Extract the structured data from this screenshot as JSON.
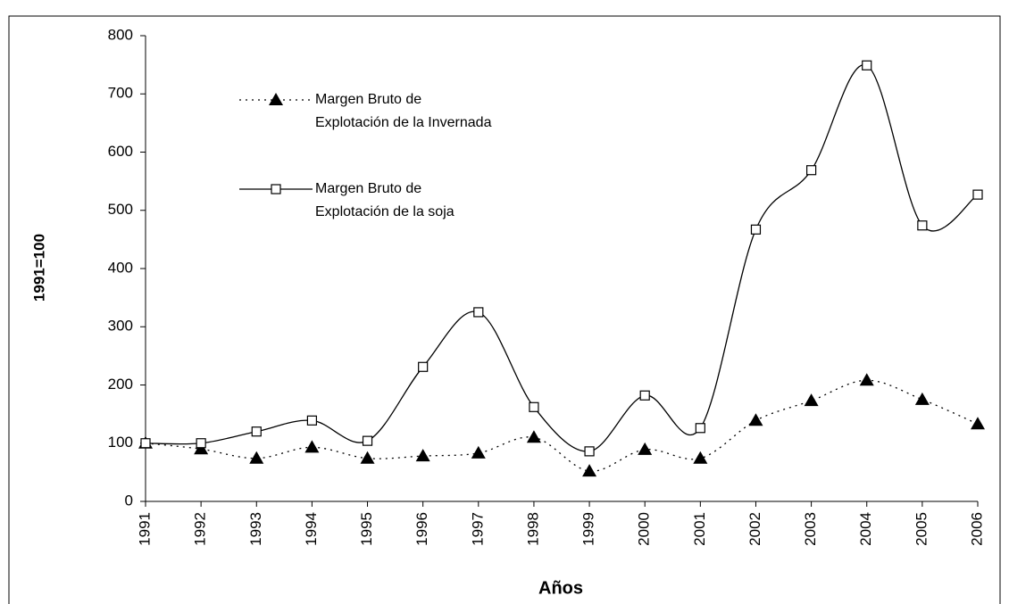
{
  "chart_data": {
    "type": "line",
    "categories": [
      "1991",
      "1992",
      "1993",
      "1994",
      "1995",
      "1996",
      "1997",
      "1998",
      "1999",
      "2000",
      "2001",
      "2002",
      "2003",
      "2004",
      "2005",
      "2006"
    ],
    "x_label": "Años",
    "y_label": "1991=100",
    "series": [
      {
        "name": "Margen Bruto de Explotación de la Invernada",
        "color": "#000000",
        "marker": "triangle",
        "dash": "dotted",
        "values": [
          100,
          90,
          74,
          93,
          74,
          78,
          83,
          110,
          52,
          89,
          74,
          139,
          173,
          208,
          175,
          133
        ]
      },
      {
        "name": "Margen Bruto de Explotación de la soja",
        "color": "#000000",
        "marker": "square",
        "dash": "solid",
        "values": [
          100,
          100,
          120,
          139,
          104,
          231,
          325,
          162,
          86,
          182,
          126,
          467,
          569,
          749,
          474,
          527
        ]
      }
    ],
    "ylim": [
      0,
      800
    ],
    "yticks": [
      0,
      100,
      200,
      300,
      400,
      500,
      600,
      700,
      800
    ],
    "grid": false
  }
}
